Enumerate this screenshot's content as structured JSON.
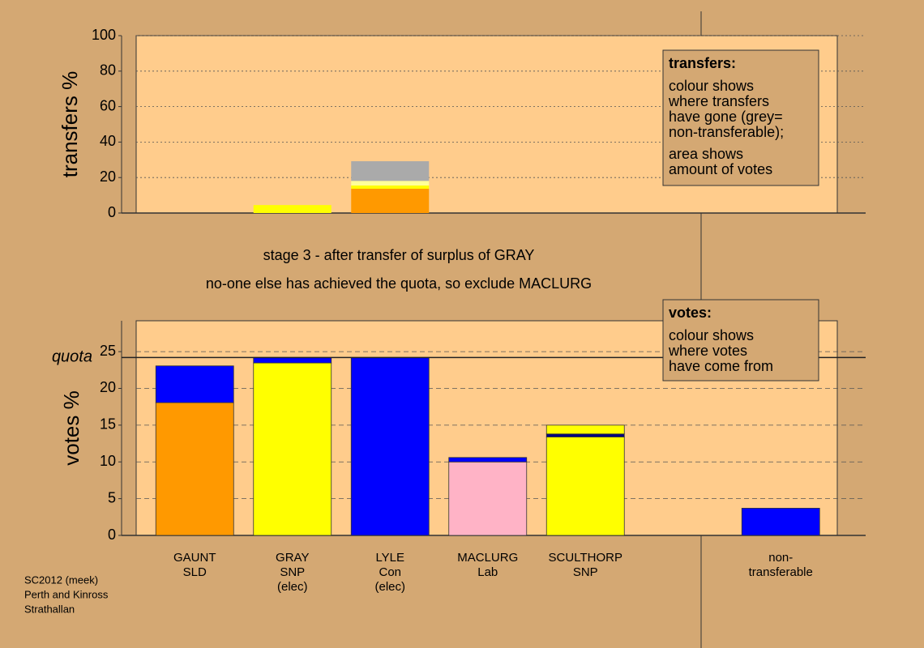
{
  "chart_data": [
    {
      "type": "bar",
      "stacked": true,
      "ylabel": "transfers %",
      "ylim": [
        0,
        100
      ],
      "yticks": [
        0,
        20,
        40,
        60,
        80,
        100
      ],
      "grid": true,
      "series": [
        {
          "color": "#ff9900",
          "values": [
            null,
            null,
            13.7,
            null,
            null,
            null,
            null
          ]
        },
        {
          "color": "#ffff00",
          "values": [
            null,
            4.5,
            1.8,
            null,
            null,
            null,
            null
          ]
        },
        {
          "color": "#ffff99",
          "values": [
            null,
            null,
            2.6,
            null,
            null,
            null,
            null
          ]
        },
        {
          "color": "#aaaaaa",
          "values": [
            null,
            null,
            11.1,
            null,
            null,
            null,
            null
          ]
        }
      ],
      "annotation": {
        "title": "transfers:",
        "lines": [
          "colour shows",
          "where transfers",
          "have gone (grey=",
          "non-transferable);",
          "area shows",
          "amount of votes"
        ]
      }
    },
    {
      "type": "bar",
      "stacked": true,
      "ylabel": "votes %",
      "ylim": [
        0,
        29.2
      ],
      "yticks": [
        0,
        5,
        10,
        15,
        20,
        25
      ],
      "grid": true,
      "categories": [
        [
          "GAUNT",
          "SLD"
        ],
        [
          "GRAY",
          "SNP",
          "(elec)"
        ],
        [
          "LYLE",
          "Con",
          "(elec)"
        ],
        [
          "MACLURG",
          "Lab"
        ],
        [
          "SCULTHORP",
          "SNP"
        ],
        null,
        [
          "non-",
          "transferable"
        ]
      ],
      "series": [
        {
          "color": "#ff9900",
          "values": [
            18.06,
            null,
            null,
            null,
            null,
            null,
            null
          ]
        },
        {
          "color": "#ffff00",
          "values": [
            null,
            23.46,
            null,
            null,
            13.4,
            null,
            null
          ]
        },
        {
          "color": "#ffb3c6",
          "values": [
            null,
            null,
            null,
            10,
            null,
            null,
            null
          ]
        },
        {
          "color": "#0000ff",
          "values": [
            5.0,
            0.74,
            24.2,
            0.6,
            null,
            null,
            3.7
          ]
        },
        {
          "color": "#000080",
          "values": [
            null,
            null,
            null,
            null,
            0.4,
            null,
            null
          ]
        },
        {
          "color": "#ffff00",
          "values": [
            null,
            null,
            null,
            null,
            1.2,
            null,
            null
          ]
        }
      ],
      "quota": {
        "label": "quota",
        "value": 24.2
      },
      "annotation": {
        "title": "votes:",
        "lines": [
          "colour shows",
          "where votes",
          "have come from"
        ]
      }
    }
  ],
  "stage": "stage 3 - after transfer of surplus of GRAY",
  "note": "no-one else has achieved the quota, so exclude MACLURG",
  "footer": [
    "SC2012 (meek)",
    "Perth and Kinross",
    "Strathallan"
  ]
}
